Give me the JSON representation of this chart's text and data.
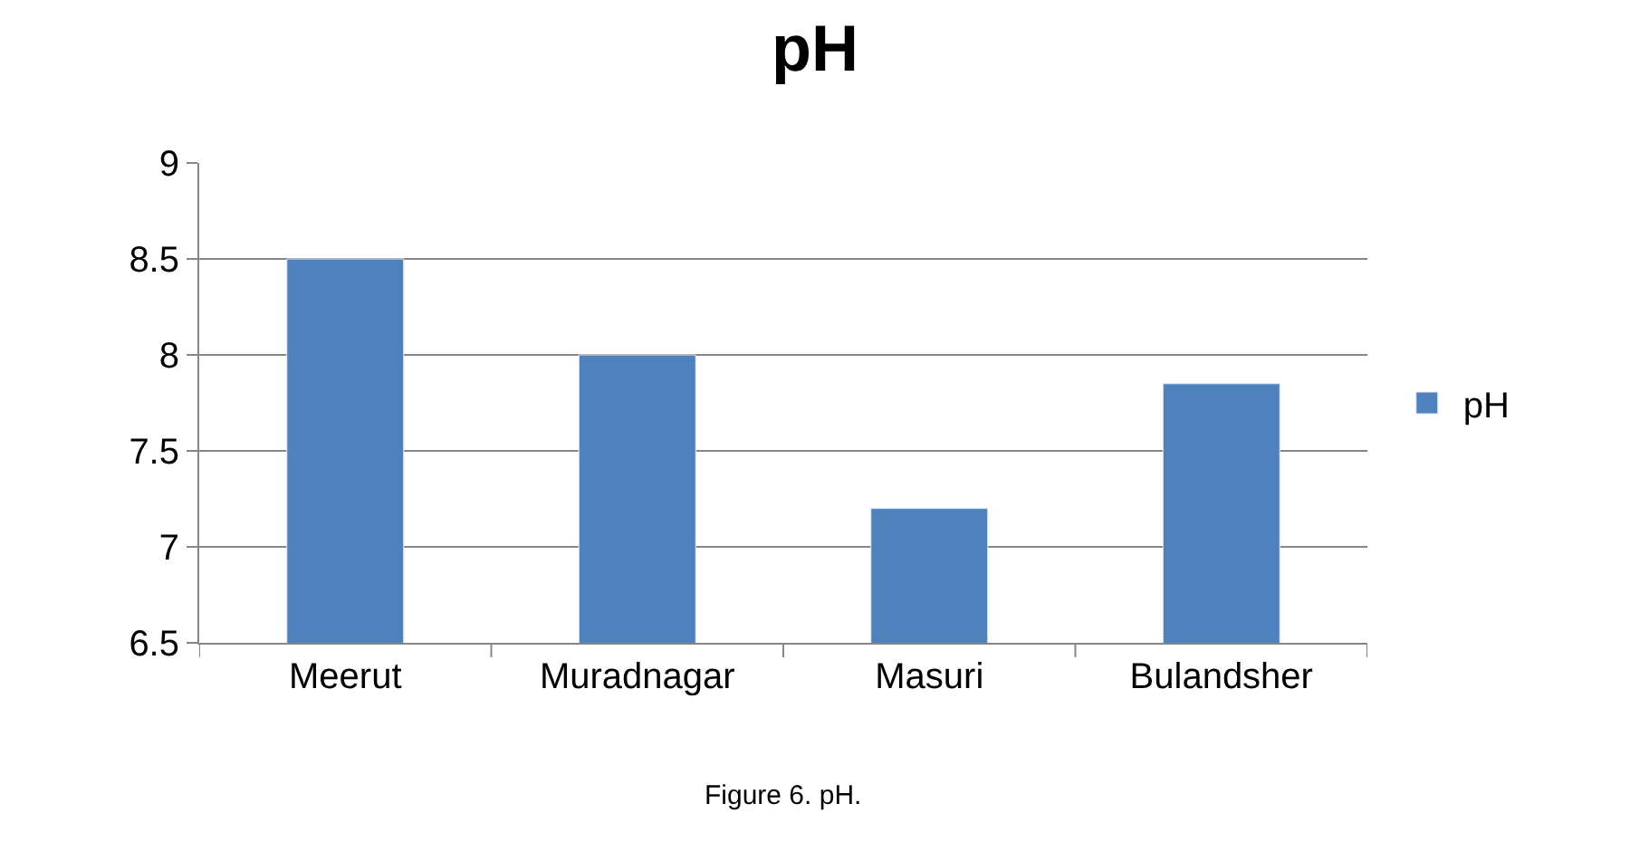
{
  "chart_data": {
    "type": "bar",
    "title": "pH",
    "categories": [
      "Meerut",
      "Muradnagar",
      "Masuri",
      "Bulandsher"
    ],
    "series": [
      {
        "name": "pH",
        "color": "#4f81bd",
        "values": [
          8.5,
          8.0,
          7.2,
          7.85
        ]
      }
    ],
    "ylim": [
      6.5,
      9
    ],
    "yticks": [
      6.5,
      7,
      7.5,
      8,
      8.5,
      9
    ],
    "grid": "y",
    "legend": "right",
    "annotations": [
      "Figure 6. pH."
    ]
  }
}
